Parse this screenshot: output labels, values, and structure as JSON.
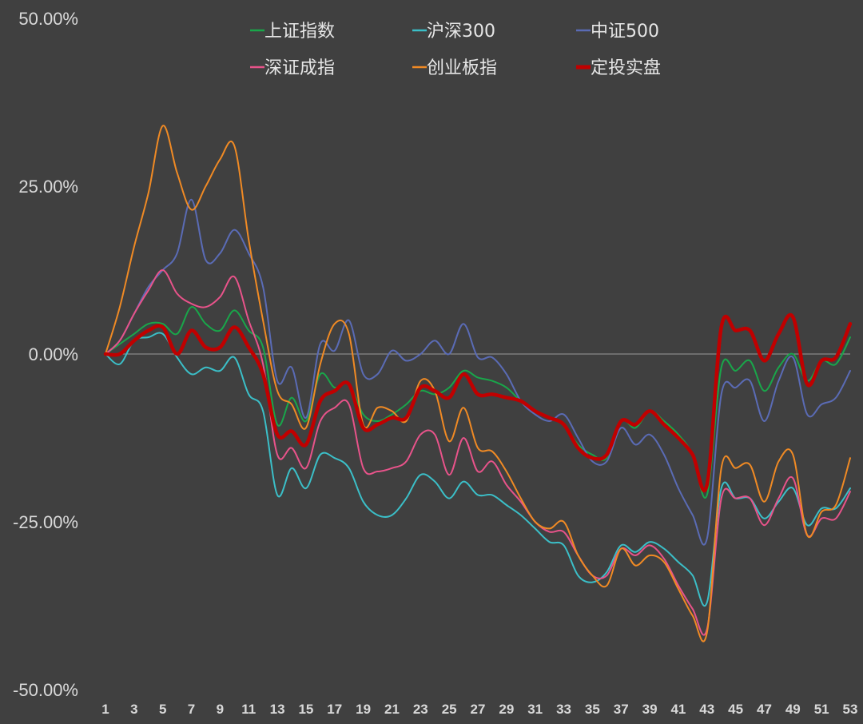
{
  "chart_data": {
    "type": "line",
    "title": "",
    "xlabel": "",
    "ylabel": "",
    "ylim": [
      -50,
      50
    ],
    "y_ticks": [
      "50.00%",
      "25.00%",
      "0.00%",
      "-25.00%",
      "-50.00%"
    ],
    "y_tick_values": [
      50,
      25,
      0,
      -25,
      -50
    ],
    "x": [
      1,
      2,
      3,
      4,
      5,
      6,
      7,
      8,
      9,
      10,
      11,
      12,
      13,
      14,
      15,
      16,
      17,
      18,
      19,
      20,
      21,
      22,
      23,
      24,
      25,
      26,
      27,
      28,
      29,
      30,
      31,
      32,
      33,
      34,
      35,
      36,
      37,
      38,
      39,
      40,
      41,
      42,
      43,
      44,
      45,
      46,
      47,
      48,
      49,
      50,
      51,
      52,
      53
    ],
    "x_ticks": [
      "1",
      "3",
      "5",
      "7",
      "9",
      "11",
      "13",
      "15",
      "17",
      "19",
      "21",
      "23",
      "25",
      "27",
      "29",
      "31",
      "33",
      "35",
      "37",
      "39",
      "41",
      "43",
      "45",
      "47",
      "49",
      "51",
      "53"
    ],
    "x_tick_values": [
      1,
      3,
      5,
      7,
      9,
      11,
      13,
      15,
      17,
      19,
      21,
      23,
      25,
      27,
      29,
      31,
      33,
      35,
      37,
      39,
      41,
      43,
      45,
      47,
      49,
      51,
      53
    ],
    "grid": false,
    "legend_position": "top",
    "series": [
      {
        "name": "上证指数",
        "color": "#19a64a",
        "width": 2,
        "values": [
          0,
          1.5,
          3,
          4.5,
          4.5,
          3,
          7,
          4.5,
          3.5,
          6.5,
          3.5,
          1,
          -10.5,
          -6.5,
          -10,
          -3,
          -5,
          -4.5,
          -9,
          -10,
          -9,
          -7.5,
          -5.5,
          -6,
          -5,
          -2.5,
          -3.5,
          -4,
          -5,
          -7,
          -8.5,
          -9.5,
          -10.5,
          -13.5,
          -15,
          -15.5,
          -10,
          -11,
          -8.5,
          -10,
          -12,
          -15,
          -21,
          -2,
          -2.5,
          -1,
          -5.5,
          -2,
          0,
          -4,
          -1,
          -1.5,
          2.5
        ]
      },
      {
        "name": "沪深300",
        "color": "#3bbfc8",
        "width": 2,
        "values": [
          0,
          -1.5,
          2,
          2.5,
          3,
          -0.5,
          -3,
          -2,
          -2.5,
          -0.5,
          -6,
          -8.5,
          -21,
          -17,
          -20,
          -15,
          -15.5,
          -17,
          -22,
          -24,
          -24,
          -21.5,
          -18,
          -19,
          -21.5,
          -19,
          -21,
          -21,
          -22.5,
          -24,
          -26,
          -28,
          -28.5,
          -33,
          -34,
          -32.5,
          -28.5,
          -29.5,
          -28,
          -29,
          -31,
          -33,
          -37,
          -20,
          -21.5,
          -21.5,
          -24.5,
          -22,
          -20,
          -25.5,
          -23,
          -23,
          -20
        ]
      },
      {
        "name": "中证500",
        "color": "#5a6bb5",
        "width": 2,
        "values": [
          0,
          2,
          6,
          10,
          12.5,
          15,
          23,
          14,
          15,
          18.5,
          15,
          10,
          -4,
          -2,
          -9.5,
          1.5,
          0.5,
          5,
          -3,
          -3,
          0.5,
          -1,
          0,
          2,
          0,
          4.5,
          -0.5,
          -0.5,
          -3,
          -7,
          -9,
          -10,
          -9,
          -12.5,
          -16,
          -16,
          -11,
          -13.5,
          -12,
          -15,
          -20,
          -24,
          -27.5,
          -6,
          -5,
          -4,
          -10,
          -4,
          -0.5,
          -9,
          -7.5,
          -6.5,
          -2.5
        ]
      },
      {
        "name": "深证成指",
        "color": "#e8538a",
        "width": 2,
        "values": [
          0,
          2,
          6,
          9.5,
          12.5,
          9,
          7.5,
          7,
          8.5,
          11.5,
          5,
          -1.5,
          -15,
          -14,
          -17,
          -10,
          -8,
          -7.5,
          -17,
          -17.5,
          -17,
          -16,
          -12,
          -12,
          -18,
          -12.5,
          -17.5,
          -16,
          -19.5,
          -22,
          -25,
          -26.5,
          -26.5,
          -30,
          -33,
          -33,
          -29,
          -30,
          -28.5,
          -30.5,
          -34.5,
          -38,
          -41,
          -21.5,
          -21.5,
          -21.5,
          -25.5,
          -21.5,
          -18.5,
          -27,
          -24.5,
          -24.5,
          -20.5
        ]
      },
      {
        "name": "创业板指",
        "color": "#f08a24",
        "width": 2,
        "values": [
          0,
          7,
          16,
          24,
          34,
          27,
          21.5,
          25,
          29,
          31,
          17,
          5,
          -5.5,
          -7.5,
          -11,
          -1.5,
          4.5,
          3,
          -10.5,
          -8,
          -8.5,
          -10,
          -4,
          -5.5,
          -13,
          -8,
          -14,
          -14.5,
          -17.5,
          -21.5,
          -25,
          -26,
          -25,
          -30,
          -33,
          -34.5,
          -29,
          -31.5,
          -30,
          -31,
          -35,
          -39,
          -41.5,
          -17,
          -17,
          -16.5,
          -22,
          -16,
          -15,
          -27,
          -23.5,
          -22.5,
          -15.5
        ]
      },
      {
        "name": "定投实盘",
        "color": "#c00000",
        "width": 4.5,
        "values": [
          0,
          0,
          2,
          3.5,
          4,
          0,
          3.5,
          1,
          1,
          4,
          1,
          -3,
          -12,
          -11.5,
          -13.5,
          -7,
          -5.5,
          -4.5,
          -11,
          -10.5,
          -9.5,
          -9.5,
          -5,
          -5.5,
          -6.5,
          -3,
          -6,
          -6,
          -6.5,
          -7,
          -8.5,
          -9.5,
          -10.5,
          -14,
          -15.5,
          -15,
          -10,
          -10.5,
          -8.5,
          -10.5,
          -12.5,
          -15,
          -19.5,
          4,
          3.5,
          3.5,
          -1,
          3,
          5.5,
          -4.5,
          -1,
          -0.5,
          4.5
        ]
      }
    ]
  }
}
